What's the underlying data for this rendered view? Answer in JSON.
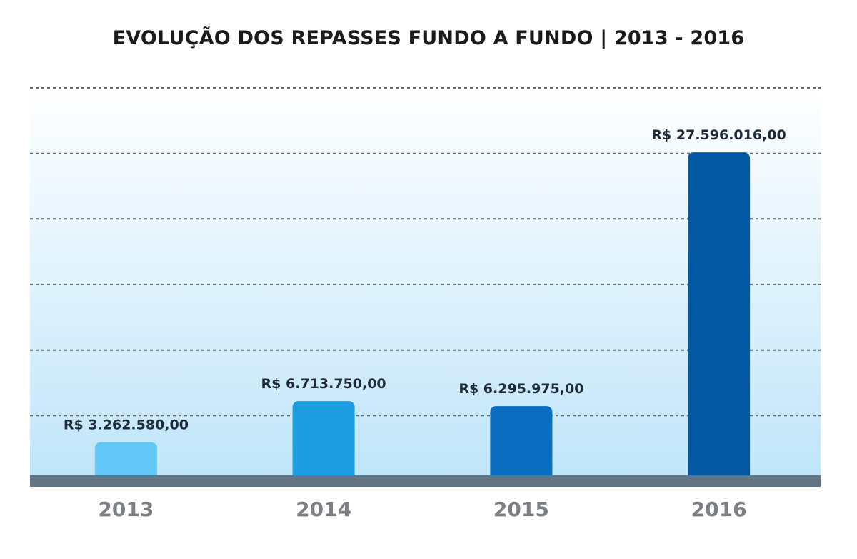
{
  "chart_data": {
    "type": "bar",
    "title": "EVOLUÇÃO DOS REPASSES FUNDO A FUNDO | 2013 - 2016",
    "categories": [
      "2013",
      "2014",
      "2015",
      "2016"
    ],
    "values": [
      3262580.0,
      6713750.0,
      6295975.0,
      27596016.0
    ],
    "data_labels": [
      "R$ 3.262.580,00",
      "R$ 6.713.750,00",
      "R$ 6.295.975,00",
      "R$ 27.596.016,00"
    ],
    "xlabel": "",
    "ylabel": "",
    "ylim": [
      0,
      33000000
    ],
    "grid": true,
    "legend": "none",
    "colors": {
      "bars": [
        "#62c6f7",
        "#1e9ee2",
        "#0b6dbf",
        "#0258a2"
      ],
      "baseline": "#627585",
      "gridline": "#6b6b6b",
      "background_top": "#ffffff",
      "background_bottom": "#bfe5fa",
      "value_label": "#1e2b3a",
      "tick_label": "#7c7f83",
      "title": "#1b1b1b"
    }
  }
}
